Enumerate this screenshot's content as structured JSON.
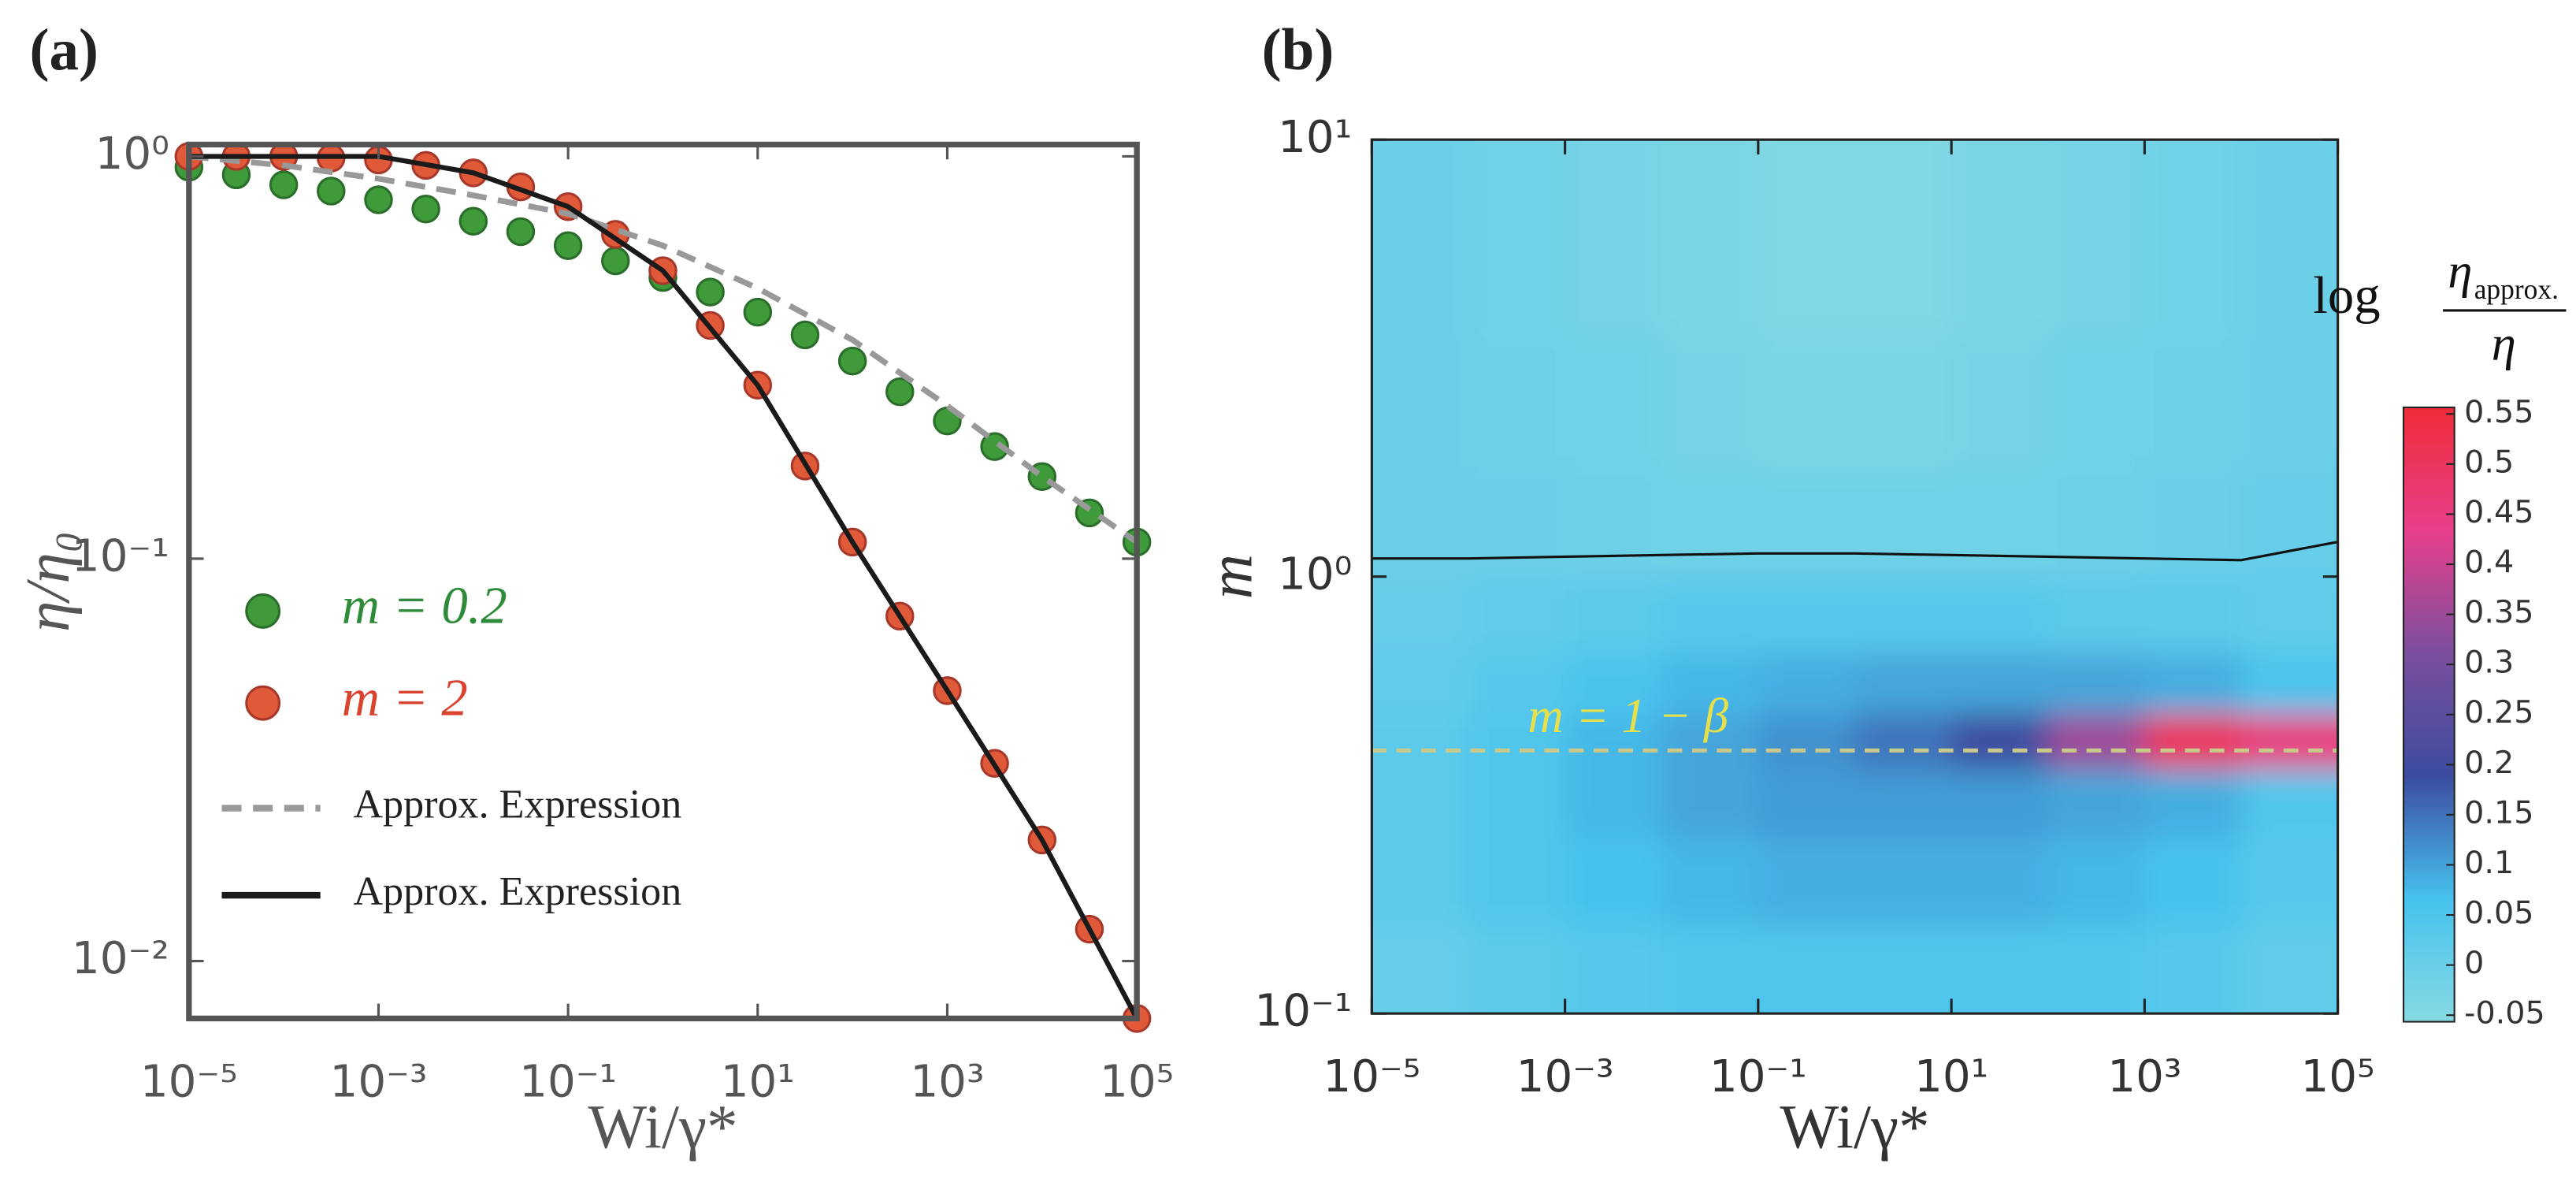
{
  "chart_data": [
    {
      "type": "scatter",
      "panel_label": "(a)",
      "xlabel": "Wi/γ*",
      "ylabel": "η/η₀",
      "xscale": "log",
      "yscale": "log",
      "xlim": [
        1e-05,
        100000.0
      ],
      "ylim": [
        0.0072,
        1.07
      ],
      "xticks": [
        {
          "value": 1e-05,
          "label": "10⁻⁵"
        },
        {
          "value": 0.001,
          "label": "10⁻³"
        },
        {
          "value": 0.1,
          "label": "10⁻¹"
        },
        {
          "value": 10,
          "label": "10¹"
        },
        {
          "value": 1000,
          "label": "10³"
        },
        {
          "value": 100000,
          "label": "10⁵"
        }
      ],
      "yticks": [
        {
          "value": 0.01,
          "label": "10⁻²"
        },
        {
          "value": 0.1,
          "label": "10⁻¹"
        },
        {
          "value": 1,
          "label": "10⁰"
        }
      ],
      "x": [
        1e-05,
        3.16e-05,
        0.0001,
        0.000316,
        0.001,
        0.00316,
        0.01,
        0.0316,
        0.1,
        0.316,
        1,
        3.16,
        10,
        31.6,
        100,
        316,
        1000,
        3160,
        10000,
        31600,
        100000
      ],
      "series": [
        {
          "name": "m = 0.2",
          "color": "#3f9a3a",
          "edge_color": "#2b6e2b",
          "text_color": "#2e8b3a",
          "values": [
            0.94,
            0.9,
            0.85,
            0.82,
            0.78,
            0.74,
            0.69,
            0.65,
            0.6,
            0.55,
            0.5,
            0.46,
            0.41,
            0.36,
            0.31,
            0.26,
            0.22,
            0.19,
            0.16,
            0.13,
            0.11
          ]
        },
        {
          "name": "m = 2",
          "color": "#e05a3a",
          "edge_color": "#a8392a",
          "text_color": "#d9442e",
          "values": [
            1.0,
            1.0,
            1.0,
            0.99,
            0.98,
            0.95,
            0.91,
            0.84,
            0.75,
            0.64,
            0.52,
            0.38,
            0.27,
            0.17,
            0.11,
            0.072,
            0.047,
            0.031,
            0.02,
            0.012,
            0.0072
          ]
        }
      ],
      "lines": [
        {
          "name": "Approx. Expression",
          "color": "#999999",
          "dashed": true,
          "x": [
            1e-05,
            0.0001,
            0.001,
            0.01,
            0.1,
            1,
            10,
            100,
            1000,
            10000,
            100000
          ],
          "values": [
            1.0,
            0.95,
            0.88,
            0.8,
            0.72,
            0.6,
            0.47,
            0.35,
            0.24,
            0.16,
            0.11
          ]
        },
        {
          "name": "Approx. Expression",
          "color": "#1a1a1a",
          "dashed": false,
          "x": [
            1e-05,
            0.0001,
            0.001,
            0.01,
            0.1,
            1,
            10,
            100,
            1000,
            10000,
            100000
          ],
          "values": [
            1.0,
            1.0,
            1.0,
            0.91,
            0.75,
            0.52,
            0.27,
            0.11,
            0.047,
            0.02,
            0.0072
          ]
        }
      ]
    },
    {
      "type": "contour",
      "panel_label": "(b)",
      "xlabel": "Wi/γ*",
      "ylabel": "m",
      "xscale": "log",
      "yscale": "log",
      "xlim": [
        1e-05,
        100000.0
      ],
      "ylim": [
        0.1,
        10
      ],
      "xticks": [
        {
          "value": 1e-05,
          "label": "10⁻⁵"
        },
        {
          "value": 0.001,
          "label": "10⁻³"
        },
        {
          "value": 0.1,
          "label": "10⁻¹"
        },
        {
          "value": 10,
          "label": "10¹"
        },
        {
          "value": 1000,
          "label": "10³"
        },
        {
          "value": 100000,
          "label": "10⁵"
        }
      ],
      "yticks": [
        {
          "value": 0.1,
          "label": "10⁻¹"
        },
        {
          "value": 1,
          "label": "10⁰"
        },
        {
          "value": 10,
          "label": "10¹"
        }
      ],
      "x": [
        3.16e-05,
        0.000316,
        0.00316,
        0.0316,
        0.316,
        3.16,
        31.6,
        316,
        3160,
        31600
      ],
      "y": [
        7.94,
        5.01,
        2.51,
        1.26,
        0.794,
        0.562,
        0.417,
        0.316,
        0.2,
        0.126
      ],
      "z": [
        [
          0.0,
          -0.01,
          -0.02,
          -0.03,
          -0.04,
          -0.04,
          -0.03,
          -0.02,
          -0.01,
          0.0
        ],
        [
          0.0,
          -0.01,
          -0.02,
          -0.03,
          -0.04,
          -0.04,
          -0.03,
          -0.02,
          -0.01,
          0.0
        ],
        [
          0.0,
          -0.005,
          -0.01,
          -0.02,
          -0.03,
          -0.03,
          -0.02,
          -0.01,
          -0.005,
          0.0
        ],
        [
          0.0,
          0.0,
          -0.005,
          -0.01,
          -0.01,
          -0.01,
          -0.01,
          -0.005,
          0.0,
          0.01
        ],
        [
          0.01,
          0.02,
          0.03,
          0.04,
          0.04,
          0.04,
          0.04,
          0.03,
          0.03,
          0.02
        ],
        [
          0.02,
          0.04,
          0.06,
          0.08,
          0.09,
          0.1,
          0.1,
          0.1,
          0.09,
          0.06
        ],
        [
          0.03,
          0.05,
          0.08,
          0.1,
          0.12,
          0.15,
          0.2,
          0.35,
          0.5,
          0.45
        ],
        [
          0.03,
          0.05,
          0.08,
          0.1,
          0.11,
          0.11,
          0.11,
          0.1,
          0.09,
          0.05
        ],
        [
          0.03,
          0.05,
          0.07,
          0.08,
          0.09,
          0.09,
          0.09,
          0.08,
          0.07,
          0.04
        ],
        [
          0.01,
          0.03,
          0.04,
          0.05,
          0.05,
          0.05,
          0.05,
          0.05,
          0.04,
          0.02
        ]
      ],
      "zlim": [
        -0.05,
        0.55
      ],
      "colormap": [
        "#86d9e2",
        "#46c2ee",
        "#3c4c9f",
        "#7b4f9e",
        "#e8408c",
        "#ef2c38"
      ],
      "colorbar_ticks": [
        -0.05,
        0,
        0.05,
        0.1,
        0.15,
        0.2,
        0.25,
        0.3,
        0.35,
        0.4,
        0.45,
        0.5,
        0.55
      ],
      "colorbar_label": {
        "prefix": "log",
        "numerator": "η",
        "subscript": "approx.",
        "denominator": "η"
      },
      "contour_line": {
        "color": "#111111",
        "x": [
          1e-05,
          0.0001,
          0.001,
          0.01,
          0.1,
          1,
          10,
          100,
          1000,
          10000,
          100000
        ],
        "values": [
          1.1,
          1.1,
          1.11,
          1.12,
          1.13,
          1.13,
          1.12,
          1.11,
          1.1,
          1.09,
          1.2
        ]
      },
      "reference_line": {
        "value": 0.4,
        "label": "m = 1 − β",
        "color": "#c9c98c",
        "text_color": "#e8e04a"
      }
    }
  ]
}
